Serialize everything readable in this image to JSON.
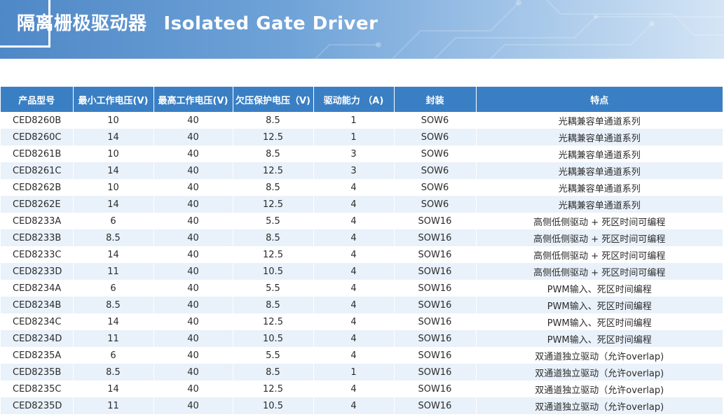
{
  "header": {
    "title_cn": "隔离栅极驱动器",
    "title_en": "Isolated Gate Driver"
  },
  "colors": {
    "header_bg": "#3a7fc4",
    "row_alt": "#e9f1fa",
    "banner": "#5d96d0"
  },
  "table": {
    "columns": [
      "产品型号",
      "最小工作电压(V)",
      "最高工作电压(V)",
      "欠压保护电压（V)",
      "驱动能力 （A)",
      "封装",
      "特点"
    ],
    "rows": [
      [
        "CED8260B",
        "10",
        "40",
        "8.5",
        "1",
        "SOW6",
        "光耦兼容单通道系列"
      ],
      [
        "CED8260C",
        "14",
        "40",
        "12.5",
        "1",
        "SOW6",
        "光耦兼容单通道系列"
      ],
      [
        "CED8261B",
        "10",
        "40",
        "8.5",
        "3",
        "SOW6",
        "光耦兼容单通道系列"
      ],
      [
        "CED8261C",
        "14",
        "40",
        "12.5",
        "3",
        "SOW6",
        "光耦兼容单通道系列"
      ],
      [
        "CED8262B",
        "10",
        "40",
        "8.5",
        "4",
        "SOW6",
        "光耦兼容单通道系列"
      ],
      [
        "CED8262E",
        "14",
        "40",
        "12.5",
        "4",
        "SOW6",
        "光耦兼容单通道系列"
      ],
      [
        "CED8233A",
        "6",
        "40",
        "5.5",
        "4",
        "SOW16",
        "高侧低侧驱动 + 死区时间可编程"
      ],
      [
        "CED8233B",
        "8.5",
        "40",
        "8.5",
        "4",
        "SOW16",
        "高侧低侧驱动 + 死区时间可编程"
      ],
      [
        "CED8233C",
        "14",
        "40",
        "12.5",
        "4",
        "SOW16",
        "高侧低侧驱动 + 死区时间可编程"
      ],
      [
        "CED8233D",
        "11",
        "40",
        "10.5",
        "4",
        "SOW16",
        "高侧低侧驱动 + 死区时间可编程"
      ],
      [
        "CED8234A",
        "6",
        "40",
        "5.5",
        "4",
        "SOW16",
        "PWM输入、死区时间编程"
      ],
      [
        "CED8234B",
        "8.5",
        "40",
        "8.5",
        "4",
        "SOW16",
        "PWM输入、死区时间编程"
      ],
      [
        "CED8234C",
        "14",
        "40",
        "12.5",
        "4",
        "SOW16",
        "PWM输入、死区时间编程"
      ],
      [
        "CED8234D",
        "11",
        "40",
        "10.5",
        "4",
        "SOW16",
        "PWM输入、死区时间编程"
      ],
      [
        "CED8235A",
        "6",
        "40",
        "5.5",
        "4",
        "SOW16",
        "双通道独立驱动（允许overlap)"
      ],
      [
        "CED8235B",
        "8.5",
        "40",
        "8.5",
        "1",
        "SOW16",
        "双通道独立驱动（允许overlap)"
      ],
      [
        "CED8235C",
        "14",
        "40",
        "12.5",
        "4",
        "SOW16",
        "双通道独立驱动（允许overlap)"
      ],
      [
        "CED8235D",
        "11",
        "40",
        "10.5",
        "4",
        "SOW16",
        "双通道独立驱动（允许overlap)"
      ]
    ]
  }
}
